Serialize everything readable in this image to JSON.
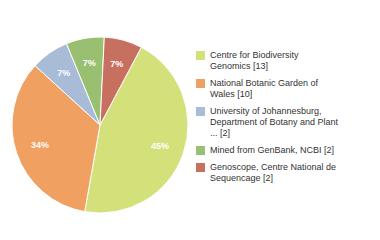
{
  "chart_data": {
    "type": "pie",
    "categories": [
      "Centre for Biodiversity\nGenomics [13]",
      "National Botanic Garden of\nWales [10]",
      "University of Johannesburg,\nDepartment of Botany and Plant\n... [2]",
      "Mined from GenBank, NCBI [2]",
      "Genoscope, Centre National de\nSequencage [2]"
    ],
    "values": [
      45,
      34,
      7,
      7,
      7
    ],
    "value_labels": [
      "45%",
      "34%",
      "7%",
      "7%",
      "7%"
    ],
    "colors": [
      "#d4e07a",
      "#f0a060",
      "#a8bcd8",
      "#98c070",
      "#c87060"
    ],
    "data_labels": true,
    "legend": "right"
  }
}
